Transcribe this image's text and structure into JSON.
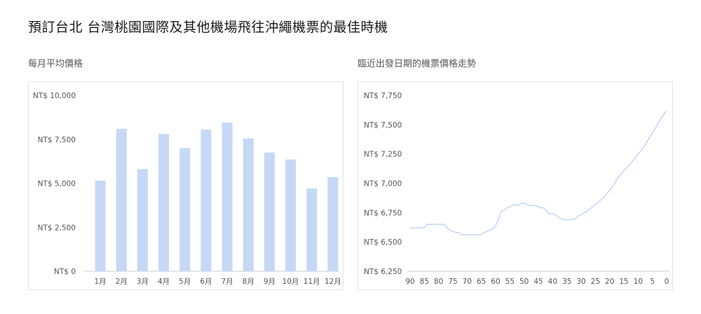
{
  "page": {
    "title": "預訂台北 台灣桃園國際及其他機場飛往沖繩機票的最佳時機"
  },
  "chart_data": [
    {
      "type": "bar",
      "title": "每月平均價格",
      "categories": [
        "1月",
        "2月",
        "3月",
        "4月",
        "5月",
        "6月",
        "7月",
        "8月",
        "9月",
        "10月",
        "11月",
        "12月"
      ],
      "values": [
        5150,
        8100,
        5800,
        7800,
        7000,
        8050,
        8450,
        7550,
        6750,
        6350,
        4700,
        5350
      ],
      "ylim": [
        0,
        10000
      ],
      "yticks": [
        0,
        2500,
        5000,
        7500,
        10000
      ],
      "ytick_labels": [
        "NT$ 0",
        "NT$ 2,500",
        "NT$ 5,000",
        "NT$ 7,500",
        "NT$ 10,000"
      ],
      "color": "#c5d8f6"
    },
    {
      "type": "line",
      "title": "臨近出發日期的機票價格走勢",
      "x": [
        90,
        89,
        88,
        87,
        86,
        85,
        84,
        83,
        82,
        81,
        80,
        79,
        78,
        77,
        76,
        75,
        74,
        73,
        72,
        71,
        70,
        69,
        68,
        67,
        66,
        65,
        64,
        63,
        62,
        61,
        60,
        59,
        58,
        57,
        56,
        55,
        54,
        53,
        52,
        51,
        50,
        49,
        48,
        47,
        46,
        45,
        44,
        43,
        42,
        41,
        40,
        39,
        38,
        37,
        36,
        35,
        34,
        33,
        32,
        31,
        30,
        29,
        28,
        27,
        26,
        25,
        24,
        23,
        22,
        21,
        20,
        19,
        18,
        17,
        16,
        15,
        14,
        13,
        12,
        11,
        10,
        9,
        8,
        7,
        6,
        5,
        4,
        3,
        2,
        1,
        0
      ],
      "y": [
        6620,
        6620,
        6620,
        6620,
        6620,
        6620,
        6650,
        6650,
        6650,
        6650,
        6650,
        6650,
        6650,
        6620,
        6600,
        6590,
        6580,
        6580,
        6560,
        6560,
        6560,
        6560,
        6560,
        6560,
        6560,
        6560,
        6580,
        6590,
        6600,
        6610,
        6640,
        6690,
        6760,
        6770,
        6790,
        6800,
        6810,
        6820,
        6810,
        6830,
        6830,
        6820,
        6810,
        6810,
        6810,
        6800,
        6790,
        6790,
        6760,
        6740,
        6740,
        6730,
        6710,
        6700,
        6690,
        6690,
        6690,
        6690,
        6700,
        6720,
        6730,
        6750,
        6760,
        6780,
        6800,
        6820,
        6840,
        6860,
        6880,
        6910,
        6940,
        6970,
        7010,
        7050,
        7080,
        7110,
        7130,
        7160,
        7190,
        7220,
        7250,
        7280,
        7310,
        7350,
        7390,
        7430,
        7470,
        7510,
        7550,
        7590,
        7620
      ],
      "xticks": [
        90,
        85,
        80,
        75,
        70,
        65,
        60,
        55,
        50,
        45,
        40,
        35,
        30,
        25,
        20,
        15,
        10,
        5,
        0
      ],
      "ylim": [
        6250,
        7750
      ],
      "yticks": [
        6250,
        6500,
        6750,
        7000,
        7250,
        7500,
        7750
      ],
      "ytick_labels": [
        "NT$ 6,250",
        "NT$ 6,500",
        "NT$ 6,750",
        "NT$ 7,000",
        "NT$ 7,250",
        "NT$ 7,500",
        "NT$ 7,750"
      ],
      "color": "#c5d8f6"
    }
  ]
}
